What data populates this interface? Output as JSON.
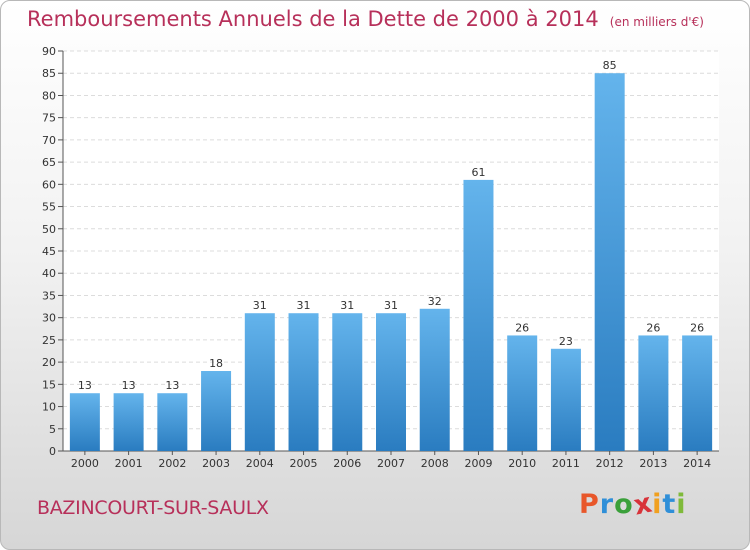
{
  "header": {
    "title": "Remboursements Annuels de la Dette de 2000 à 2014",
    "unit": "(en milliers d'€)"
  },
  "footer": {
    "commune": "BAZINCOURT-SUR-SAULX",
    "logo": [
      "P",
      "r",
      "o",
      "x",
      "i",
      "t",
      "i"
    ],
    "logo_colors": [
      "#e8572a",
      "#2f8fd8",
      "#3aa03a",
      "#d8333a",
      "#f0a020",
      "#2f8fd8",
      "#7fba3a"
    ]
  },
  "colors": {
    "bar": "#3d97dc",
    "bar_light": "#64b4ec",
    "bar_dark": "#2a7cc0",
    "title": "#b7305a"
  },
  "chart_data": {
    "type": "bar",
    "title": "Remboursements Annuels de la Dette de 2000 à 2014",
    "xlabel": "",
    "ylabel": "",
    "categories": [
      "2000",
      "2001",
      "2002",
      "2003",
      "2004",
      "2005",
      "2006",
      "2007",
      "2008",
      "2009",
      "2010",
      "2011",
      "2012",
      "2013",
      "2014"
    ],
    "values": [
      13,
      13,
      13,
      18,
      31,
      31,
      31,
      31,
      32,
      61,
      26,
      23,
      85,
      26,
      26
    ],
    "ylim": [
      0,
      90
    ],
    "yticks": [
      0,
      5,
      10,
      15,
      20,
      25,
      30,
      35,
      40,
      45,
      50,
      55,
      60,
      65,
      70,
      75,
      80,
      85,
      90
    ],
    "grid": true,
    "legend": "none"
  }
}
